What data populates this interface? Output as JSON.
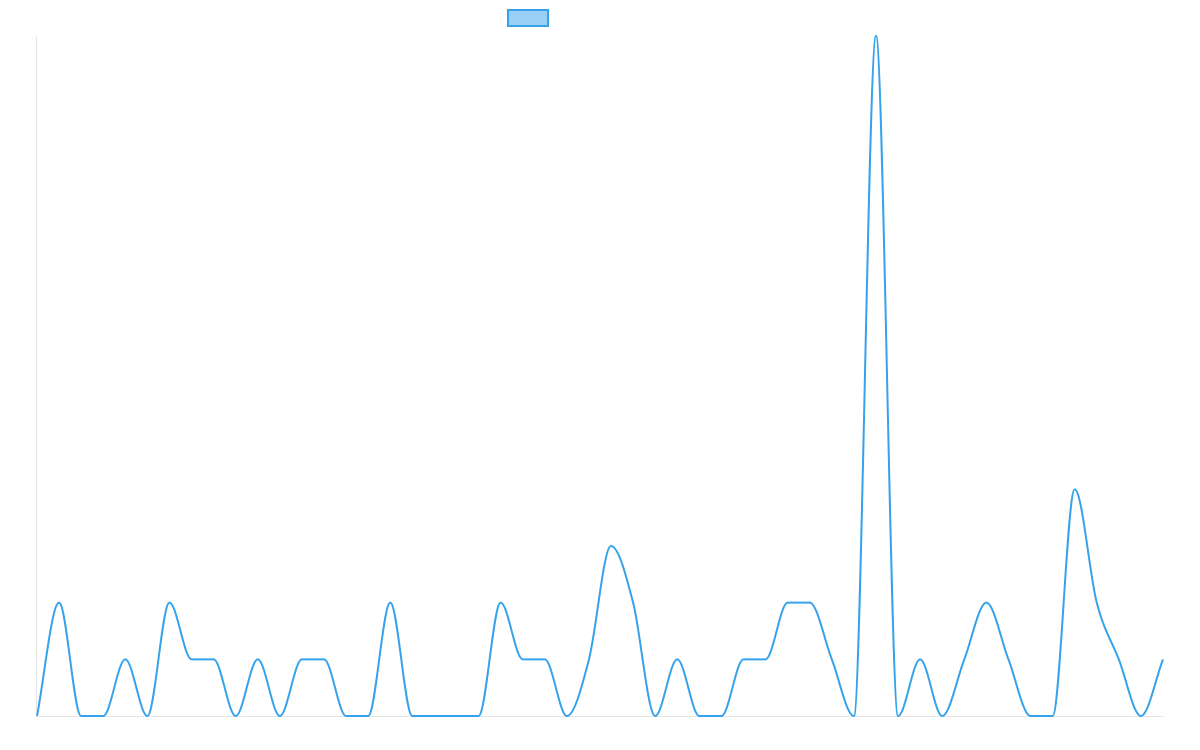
{
  "colors": {
    "line": "#36a2eb",
    "legend_fill": "#9ad0f5",
    "axis": "#e6e6e6"
  },
  "legend": {
    "label": "",
    "placement": "top-center"
  },
  "chart_data": {
    "type": "line",
    "title": "",
    "xlabel": "",
    "ylabel": "",
    "grid": false,
    "smooth": true,
    "ylim": [
      0,
      12
    ],
    "x": [
      0,
      1,
      2,
      3,
      4,
      5,
      6,
      7,
      8,
      9,
      10,
      11,
      12,
      13,
      14,
      15,
      16,
      17,
      18,
      19,
      20,
      21,
      22,
      23,
      24,
      25,
      26,
      27,
      28,
      29,
      30,
      31,
      32,
      33,
      34,
      35,
      36,
      37,
      38,
      39,
      40,
      41,
      42,
      43,
      44,
      45,
      46,
      47,
      48,
      49,
      50,
      51
    ],
    "series": [
      {
        "name": "",
        "values": [
          0,
          2,
          0,
          0,
          1,
          0,
          2,
          1,
          1,
          0,
          1,
          0,
          1,
          1,
          0,
          0,
          2,
          0,
          0,
          0,
          0,
          2,
          1,
          1,
          0,
          1,
          3,
          2,
          0,
          1,
          0,
          0,
          1,
          1,
          2,
          2,
          1,
          0,
          12,
          0,
          1,
          0,
          1,
          2,
          1,
          0,
          0,
          4,
          2,
          1,
          0,
          1
        ]
      }
    ]
  }
}
